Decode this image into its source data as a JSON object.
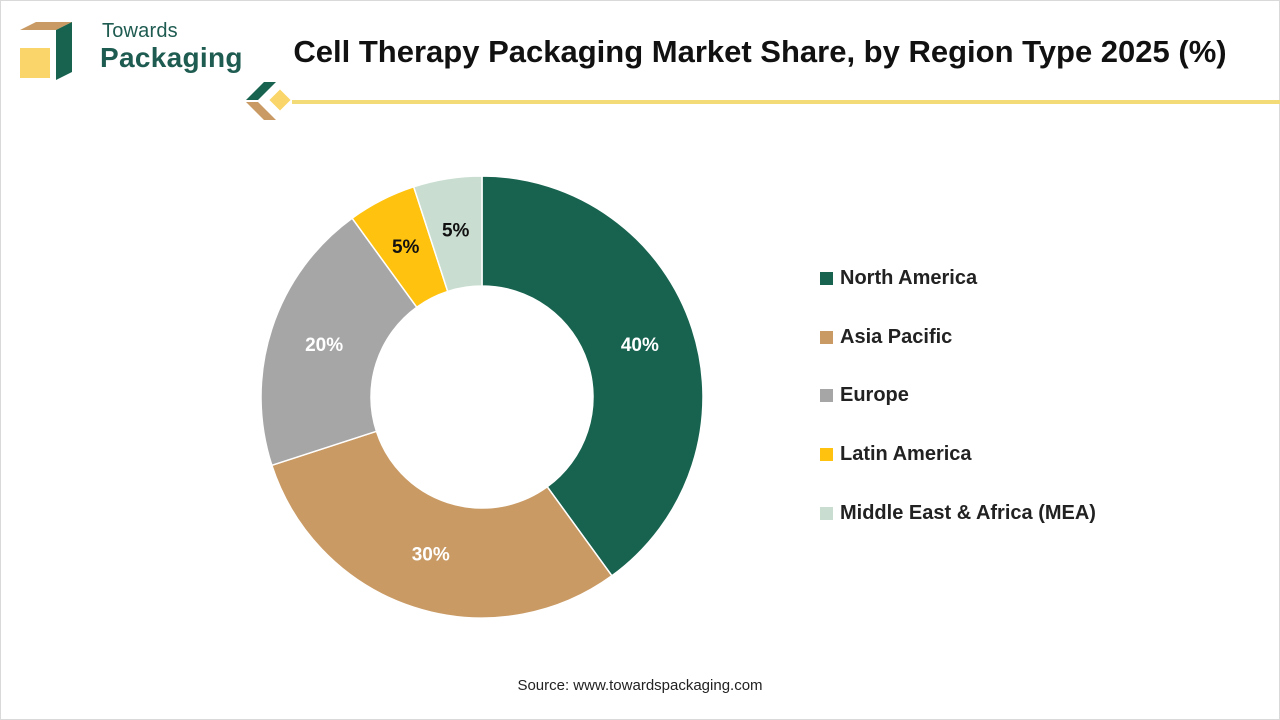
{
  "brand": {
    "name_top": "Towards",
    "name_bottom": "Packaging",
    "color": "#1e5b50",
    "accent": "#f3dc77"
  },
  "chart_data": {
    "type": "pie",
    "variant": "donut",
    "title": "Cell Therapy Packaging Market Share, by Region Type 2025 (%)",
    "categories": [
      "North America",
      "Asia Pacific",
      "Europe",
      "Latin America",
      "Middle East & Africa (MEA)"
    ],
    "values": [
      40,
      30,
      20,
      5,
      5
    ],
    "data_labels": [
      "40%",
      "30%",
      "20%",
      "5%",
      "5%"
    ],
    "colors": [
      "#17634f",
      "#c99a64",
      "#a6a6a6",
      "#ffc20e",
      "#c9ddd0"
    ],
    "label_colors": [
      "#ffffff",
      "#ffffff",
      "#ffffff",
      "#111111",
      "#111111"
    ],
    "legend_position": "right",
    "start_angle_deg": 0,
    "direction": "clockwise"
  },
  "source": "Source: www.towardspackaging.com"
}
